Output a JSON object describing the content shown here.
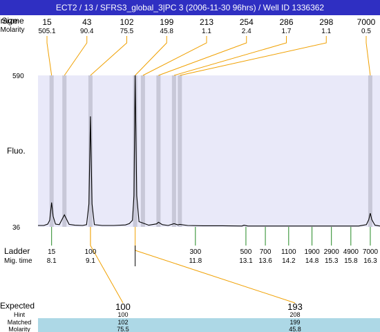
{
  "title": "ECT2 / 13 / SFRS3_global_3|PC 3 (2006-11-30 96hrs) / Well ID 1336362",
  "labels": {
    "fragment": "Fragme",
    "size": "Size",
    "molarity": "Molarity",
    "fluo": "Fluo.",
    "ladder": "Ladder",
    "mig_time": "Mig. time",
    "expected": "Expected",
    "hint": "Hint",
    "matched": "Matched",
    "bottom_molarity": "Molarity"
  },
  "colors": {
    "title_bar": "#2f2fc2",
    "plot_bg": "#e9e9f9",
    "peak_band": "#c8c8d8",
    "orange": "#f0a000",
    "green": "#228822",
    "red": "#ee0000",
    "table_band": "#add8e6"
  },
  "chart_data": {
    "type": "line",
    "title": "ECT2 / 13 / SFRS3_global_3|PC 3 (2006-11-30 96hrs) / Well ID 1336362",
    "ylabel": "Fluo.",
    "xlabel": "Mig. time",
    "ylim": [
      36,
      590
    ],
    "xlim": [
      7.75,
      16.55
    ],
    "y_ticks": [
      "590",
      "36"
    ],
    "fragments": [
      {
        "size": "15",
        "molarity": "505.1",
        "time": 8.1
      },
      {
        "size": "43",
        "molarity": "90.4",
        "time": 8.43
      },
      {
        "size": "102",
        "molarity": "75.5",
        "time": 9.1
      },
      {
        "size": "199",
        "molarity": "45.8",
        "time": 10.25
      },
      {
        "size": "213",
        "molarity": "1.1",
        "time": 10.45
      },
      {
        "size": "254",
        "molarity": "2.4",
        "time": 10.85
      },
      {
        "size": "286",
        "molarity": "1.7",
        "time": 11.25
      },
      {
        "size": "298",
        "molarity": "1.1",
        "time": 11.4
      },
      {
        "size": "7000",
        "molarity": "0.5",
        "time": 16.3
      }
    ],
    "ladder": [
      {
        "size": "15",
        "time": "8.1",
        "t": 8.1,
        "marker": "green"
      },
      {
        "size": "100",
        "time": "9.1",
        "t": 9.1,
        "marker": "orange"
      },
      {
        "size": "300",
        "time": "11.8",
        "t": 11.8,
        "marker": "green"
      },
      {
        "size": "500",
        "time": "13.1",
        "t": 13.1,
        "marker": "green"
      },
      {
        "size": "700",
        "time": "13.6",
        "t": 13.6,
        "marker": "green"
      },
      {
        "size": "1100",
        "time": "14.2",
        "t": 14.2,
        "marker": "green"
      },
      {
        "size": "1900",
        "time": "14.8",
        "t": 14.8,
        "marker": "green"
      },
      {
        "size": "2900",
        "time": "15.3",
        "t": 15.3,
        "marker": "green"
      },
      {
        "size": "4900",
        "time": "15.8",
        "t": 15.8,
        "marker": "green"
      },
      {
        "size": "7000",
        "time": "16.3",
        "t": 16.3,
        "marker": "green"
      }
    ],
    "trace": [
      [
        7.75,
        41
      ],
      [
        7.9,
        41
      ],
      [
        8.0,
        46
      ],
      [
        8.05,
        60
      ],
      [
        8.1,
        125
      ],
      [
        8.14,
        75
      ],
      [
        8.2,
        46
      ],
      [
        8.3,
        44
      ],
      [
        8.43,
        80
      ],
      [
        8.55,
        45
      ],
      [
        8.7,
        42
      ],
      [
        8.9,
        41
      ],
      [
        9.0,
        44
      ],
      [
        9.06,
        120
      ],
      [
        9.1,
        440
      ],
      [
        9.14,
        120
      ],
      [
        9.2,
        44
      ],
      [
        9.4,
        41
      ],
      [
        9.7,
        41
      ],
      [
        10.0,
        43
      ],
      [
        10.1,
        48
      ],
      [
        10.18,
        60
      ],
      [
        10.22,
        150
      ],
      [
        10.25,
        590
      ],
      [
        10.29,
        150
      ],
      [
        10.35,
        55
      ],
      [
        10.45,
        50
      ],
      [
        10.6,
        42
      ],
      [
        10.8,
        47
      ],
      [
        10.85,
        53
      ],
      [
        10.95,
        44
      ],
      [
        11.1,
        41
      ],
      [
        11.25,
        48
      ],
      [
        11.35,
        43
      ],
      [
        11.4,
        45
      ],
      [
        11.6,
        41
      ],
      [
        12.0,
        40
      ],
      [
        12.5,
        40
      ],
      [
        13.0,
        39
      ],
      [
        13.05,
        42
      ],
      [
        13.15,
        39
      ],
      [
        13.5,
        39
      ],
      [
        14.0,
        39
      ],
      [
        14.5,
        39
      ],
      [
        15.0,
        39
      ],
      [
        15.5,
        39
      ],
      [
        16.0,
        39
      ],
      [
        16.2,
        44
      ],
      [
        16.26,
        62
      ],
      [
        16.3,
        86
      ],
      [
        16.34,
        62
      ],
      [
        16.42,
        42
      ],
      [
        16.55,
        39
      ]
    ],
    "expected_table": [
      {
        "expected": "100",
        "hint": "100",
        "matched": "102",
        "molarity": "75.5",
        "frag_time": 9.1,
        "ladder_time": 9.1
      },
      {
        "expected": "193",
        "hint": "208",
        "matched": "199",
        "molarity": "45.8",
        "frag_time": 10.25,
        "ladder_time": 10.25
      }
    ]
  }
}
